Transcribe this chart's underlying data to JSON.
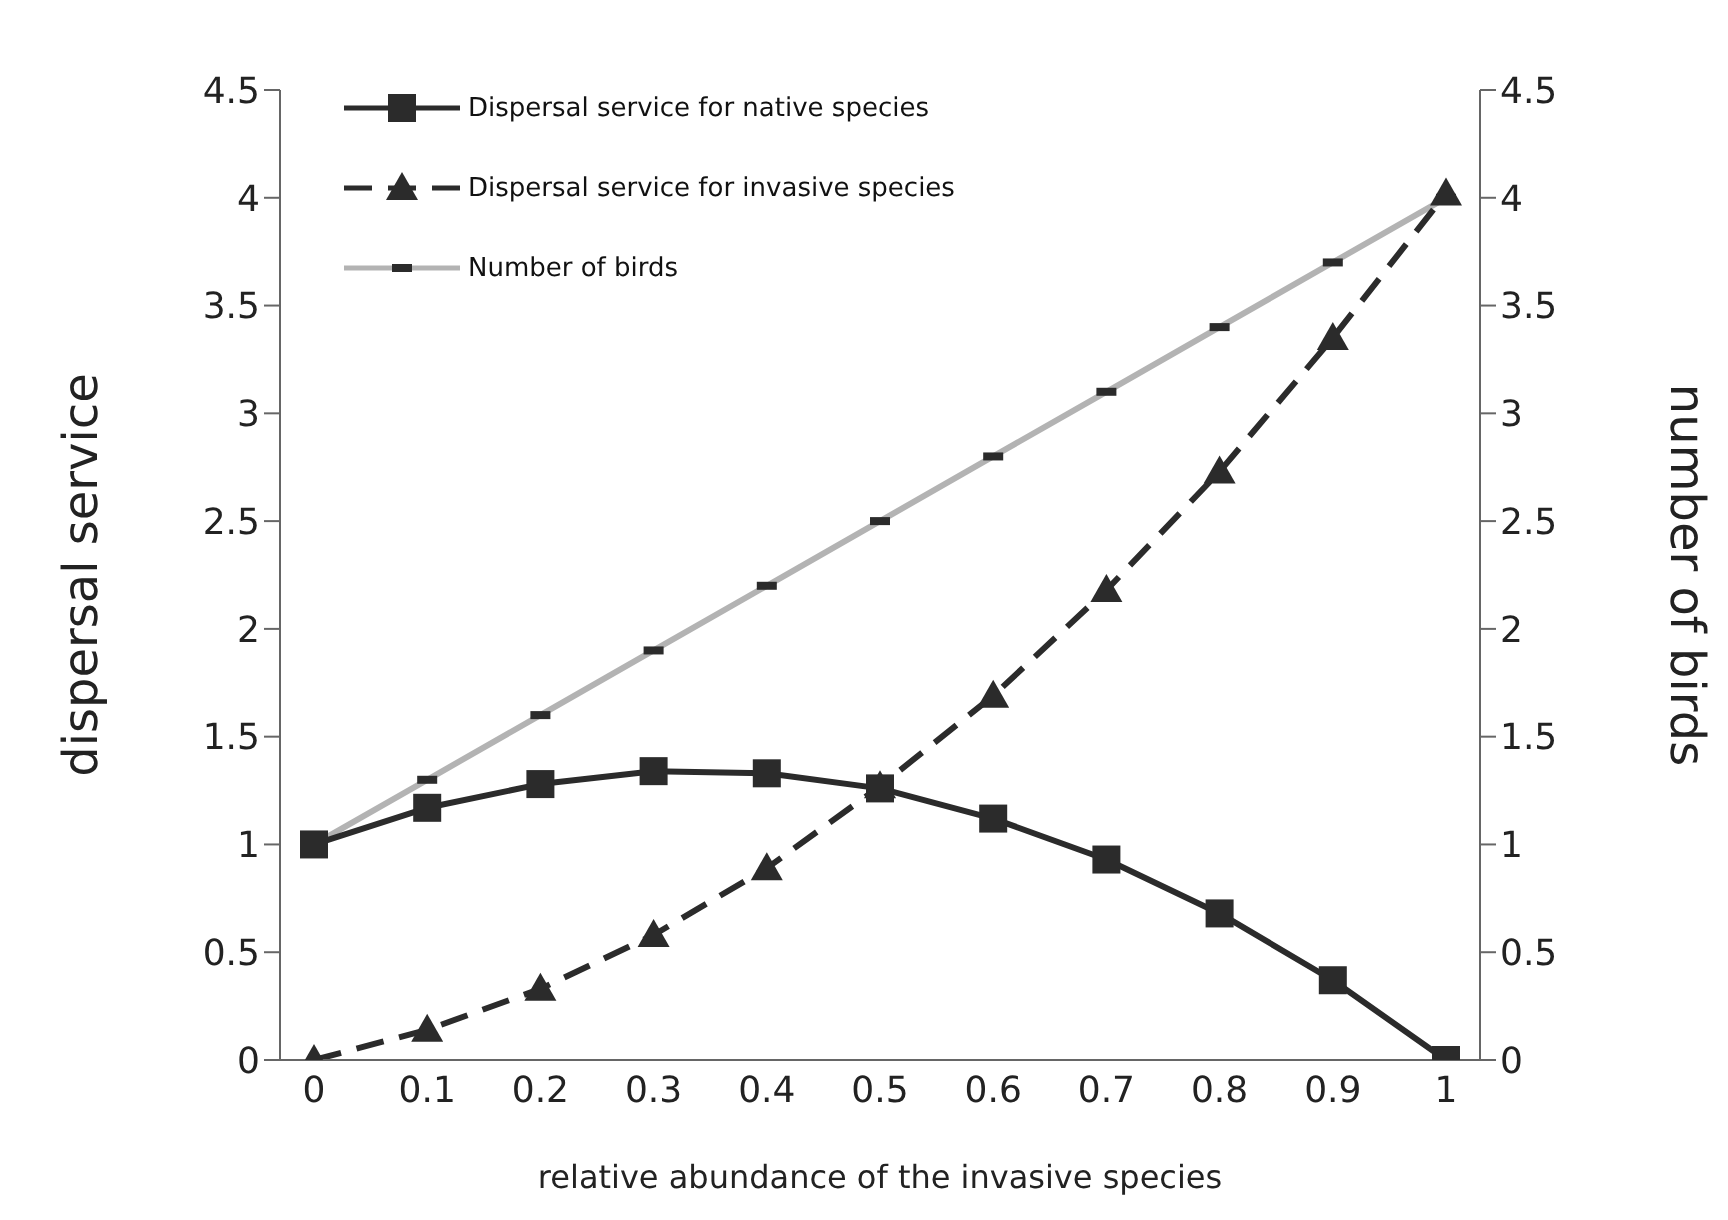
{
  "chart_data": {
    "type": "line",
    "xlabel": "relative abundance of the invasive species",
    "ylabel": "dispersal service",
    "y2label": "number of birds",
    "categories": [
      "0",
      "0.1",
      "0.2",
      "0.3",
      "0.4",
      "0.5",
      "0.6",
      "0.7",
      "0.8",
      "0.9",
      "1"
    ],
    "series": [
      {
        "name": "Dispersal service for native species",
        "color": "#2b2b2b",
        "marker": "square",
        "line_style": "solid",
        "values": [
          1.0,
          1.17,
          1.28,
          1.34,
          1.33,
          1.26,
          1.12,
          0.93,
          0.68,
          0.37,
          0.0
        ]
      },
      {
        "name": "Dispersal service for invasive species",
        "color": "#2b2b2b",
        "marker": "triangle",
        "line_style": "dashed",
        "values": [
          0.0,
          0.14,
          0.33,
          0.58,
          0.89,
          1.27,
          1.69,
          2.18,
          2.73,
          3.35,
          4.02
        ]
      },
      {
        "name": "Number of birds",
        "color": "#b3b3b3",
        "marker": "square",
        "line_style": "solid",
        "axis": "y2",
        "values": [
          1.0,
          1.3,
          1.6,
          1.9,
          2.2,
          2.5,
          2.8,
          3.1,
          3.4,
          3.7,
          4.0
        ]
      }
    ],
    "ylim": [
      0,
      4.5
    ],
    "yticks": [
      0,
      0.5,
      1,
      1.5,
      2,
      2.5,
      3,
      3.5,
      4,
      4.5
    ],
    "y2lim": [
      0,
      4.5
    ],
    "y2ticks": [
      0,
      0.5,
      1,
      1.5,
      2,
      2.5,
      3,
      3.5,
      4,
      4.5
    ],
    "grid": false,
    "legend": "top left"
  }
}
